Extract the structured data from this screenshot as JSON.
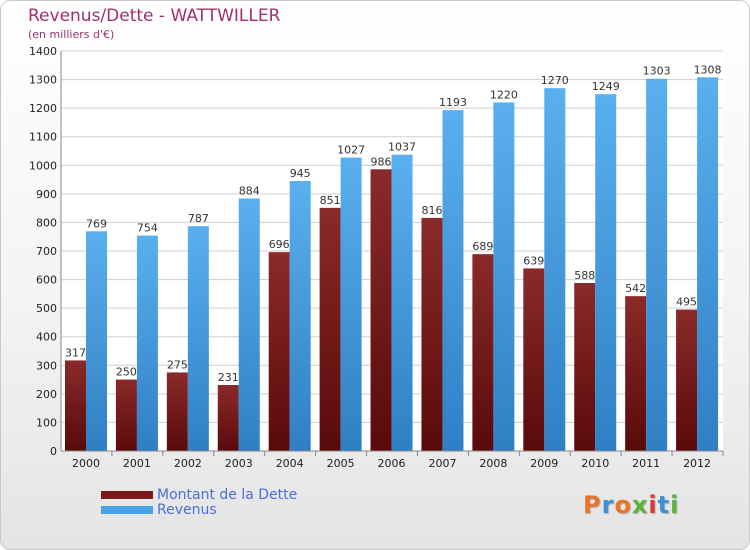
{
  "title": "Revenus/Dette - WATTWILLER",
  "subtitle": "(en milliers d'€)",
  "logo_text": "Proxiti",
  "colors": {
    "dette": "#7a1a1a",
    "revenus": "#4aa3e4",
    "title": "#a0306e"
  },
  "chart_data": {
    "type": "bar",
    "categories": [
      "2000",
      "2001",
      "2002",
      "2003",
      "2004",
      "2005",
      "2006",
      "2007",
      "2008",
      "2009",
      "2010",
      "2011",
      "2012"
    ],
    "series": [
      {
        "name": "Montant de la Dette",
        "values": [
          317,
          250,
          275,
          231,
          696,
          851,
          986,
          816,
          689,
          639,
          588,
          542,
          495
        ]
      },
      {
        "name": "Revenus",
        "values": [
          769,
          754,
          787,
          884,
          945,
          1027,
          1037,
          1193,
          1220,
          1270,
          1249,
          1303,
          1308
        ]
      }
    ],
    "ylim": [
      0,
      1400
    ],
    "yticks": [
      0,
      100,
      200,
      300,
      400,
      500,
      600,
      700,
      800,
      900,
      1000,
      1100,
      1200,
      1300,
      1400
    ],
    "grid": true,
    "legend_position": "bottom-left"
  }
}
